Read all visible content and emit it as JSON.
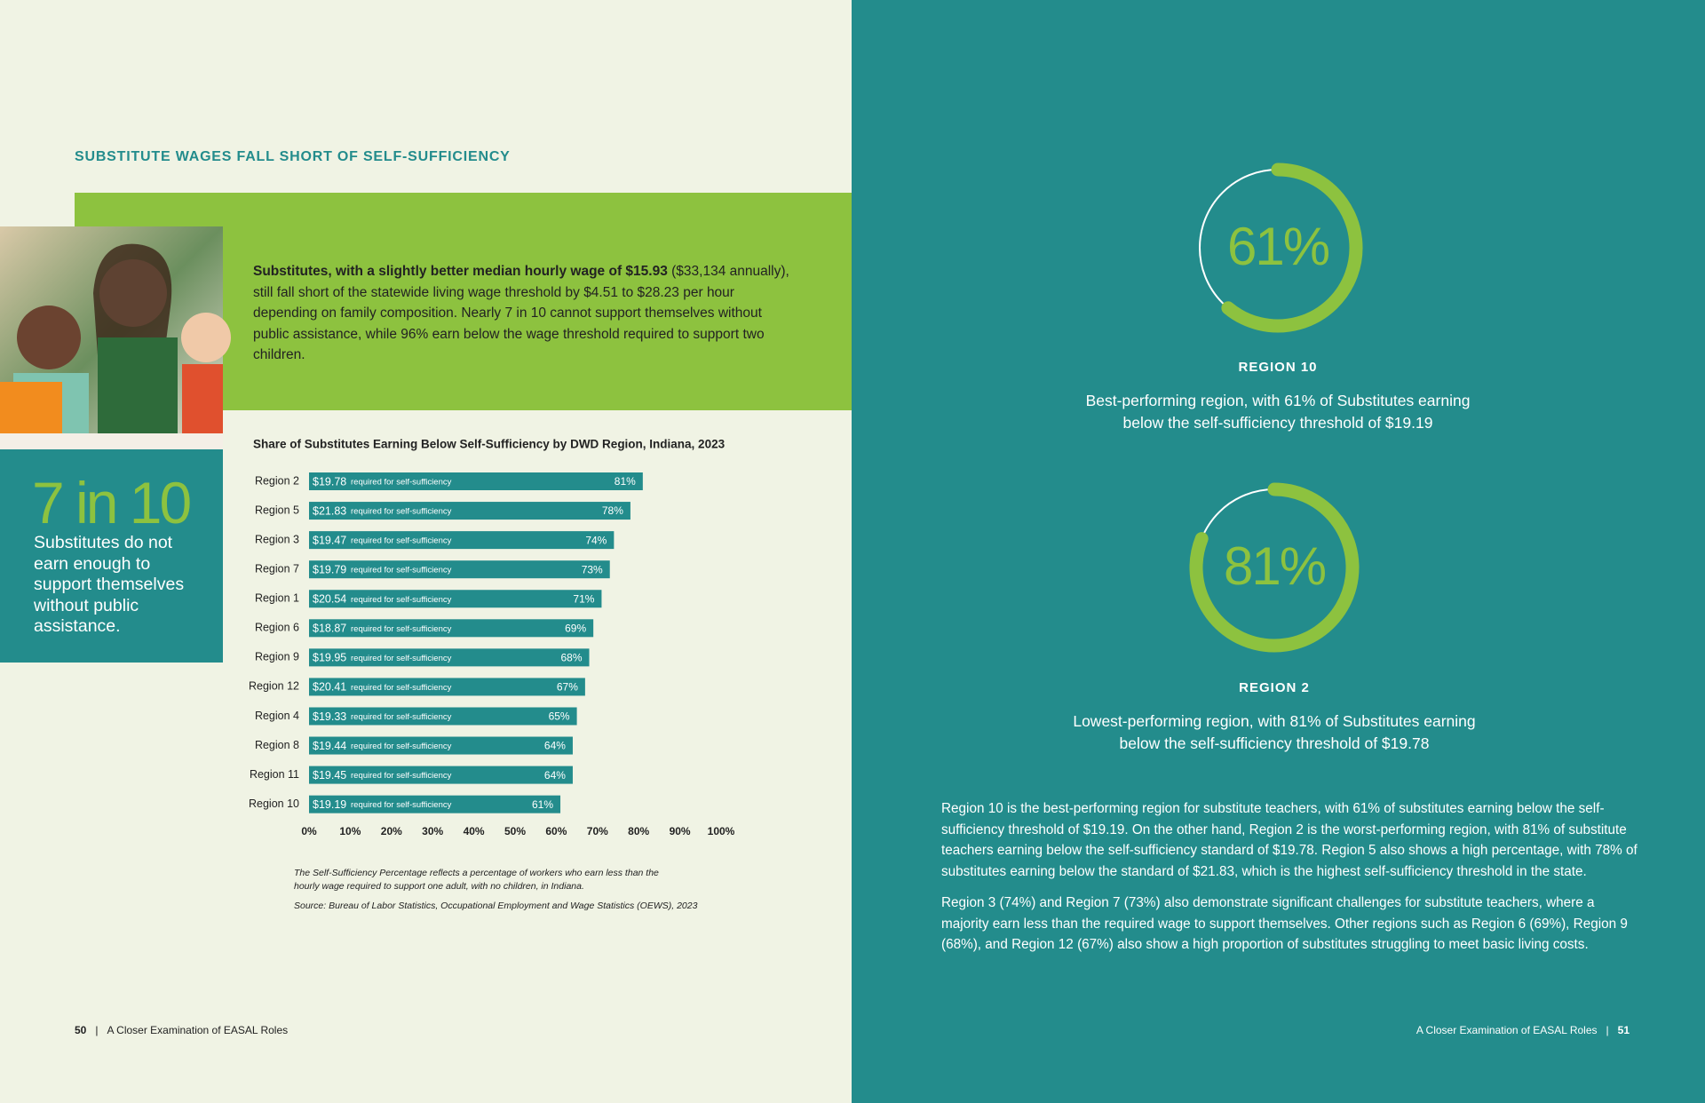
{
  "header": {
    "title": "SUBSTITUTE WAGES FALL SHORT OF SELF-SUFFICIENCY"
  },
  "intro": {
    "bold": "Substitutes, with a slightly better median hourly wage of $15.93",
    "text": " ($33,134 annually), still fall short of the statewide living wage threshold by $4.51 to $28.23 per hour depending on family composition. Nearly 7 in 10 cannot support themselves without public assistance, while 96% earn below the wage threshold required to support two children."
  },
  "callout": {
    "big": "7 in 10",
    "text": "Substitutes do not earn enough to support themselves without public assistance."
  },
  "chart_data": {
    "type": "bar",
    "orientation": "horizontal",
    "title": "Share of Substitutes Earning Below Self-Sufficiency by DWD Region, Indiana, 2023",
    "categories": [
      "Region 2",
      "Region 5",
      "Region 3",
      "Region 7",
      "Region 1",
      "Region 6",
      "Region 9",
      "Region 12",
      "Region 4",
      "Region 8",
      "Region 11",
      "Region 10"
    ],
    "values": [
      81,
      78,
      74,
      73,
      71,
      69,
      68,
      67,
      65,
      64,
      64,
      61
    ],
    "value_labels": [
      "81%",
      "78%",
      "74%",
      "73%",
      "71%",
      "69%",
      "68%",
      "67%",
      "65%",
      "64%",
      "64%",
      "61%"
    ],
    "thresholds": [
      "$19.78",
      "$21.83",
      "$19.47",
      "$19.79",
      "$20.54",
      "$18.87",
      "$19.95",
      "$20.41",
      "$19.33",
      "$19.44",
      "$19.45",
      "$19.19"
    ],
    "bar_note": "required for self-sufficiency",
    "color": "#238c8c",
    "xlim": [
      0,
      100
    ],
    "xticks": [
      {
        "value": 0,
        "label": "0%"
      },
      {
        "value": 10,
        "label": "10%"
      },
      {
        "value": 20,
        "label": "20%"
      },
      {
        "value": 30,
        "label": "30%"
      },
      {
        "value": 40,
        "label": "40%"
      },
      {
        "value": 50,
        "label": "50%"
      },
      {
        "value": 60,
        "label": "60%"
      },
      {
        "value": 70,
        "label": "70%"
      },
      {
        "value": 80,
        "label": "80%"
      },
      {
        "value": 90,
        "label": "90%"
      },
      {
        "value": 100,
        "label": "100%"
      }
    ],
    "notes": [
      "The Self-Sufficiency Percentage reflects a percentage of workers who earn less than the hourly wage required to support one adult, with no children, in Indiana.",
      "Source: Bureau of Labor Statistics, Occupational Employment and Wage Statistics (OEWS), 2023"
    ]
  },
  "donuts": [
    {
      "value": 61,
      "label": "61%",
      "region": "REGION 10",
      "text": "Best-performing region, with 61% of Substitutes earning below the self-sufficiency threshold of $19.19"
    },
    {
      "value": 81,
      "label": "81%",
      "region": "REGION 2",
      "text": "Lowest-performing region, with 81% of Substitutes earning below the self-sufficiency threshold of $19.78"
    }
  ],
  "body": [
    "Region 10 is the best-performing region for substitute teachers, with 61% of substitutes earning below the self-sufficiency threshold of $19.19. On the other hand, Region 2 is the worst-performing region, with 81% of substitute teachers earning below the self-sufficiency standard of $19.78. Region 5 also shows a high percentage, with 78% of substitutes earning below the standard of $21.83, which is the highest self-sufficiency threshold in the state.",
    "Region 3 (74%) and Region 7 (73%) also demonstrate significant challenges for substitute teachers, where a majority earn less than the required wage to support themselves. Other regions such as Region 6 (69%), Region 9 (68%), and Region 12 (67%) also show a high proportion of substitutes struggling to meet basic living costs."
  ],
  "footer": {
    "left_page": "50",
    "left_text": "A Closer Examination of EASAL Roles",
    "right_text": "A Closer Examination of EASAL Roles",
    "right_page": "51"
  }
}
